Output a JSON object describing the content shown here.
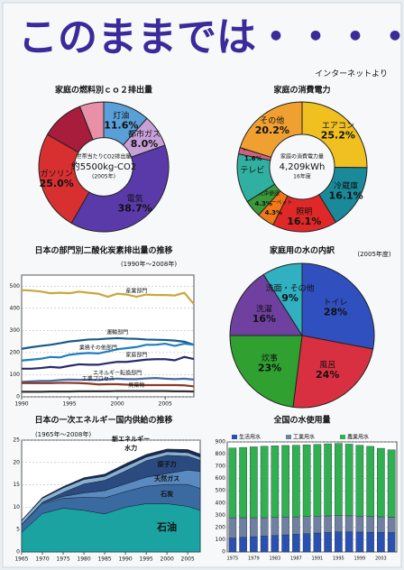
{
  "header": {
    "title": "このままでは・・・・・",
    "source": "インターネットより"
  },
  "chart_data": [
    {
      "type": "donut",
      "title": "家庭の燃料別ｃｏ２排出量",
      "center_labels": [
        "世帯当たりCO2排出量",
        "約5500kg-CO2",
        "(2005年)"
      ],
      "categories": [
        "灯油",
        "都市ガス",
        "電気",
        "ガソリン",
        null,
        null
      ],
      "values": [
        11.6,
        8.0,
        38.7,
        25.0,
        10.7,
        6.0
      ],
      "value_labels": [
        "11.6%",
        "8.0%",
        "38.7%",
        "25.0%",
        null,
        null
      ],
      "colors": [
        "#5aa0d8",
        "#c8a0d8",
        "#5a3aa8",
        "#d83030",
        "#a81c3c",
        "#e890a8"
      ]
    },
    {
      "type": "donut",
      "title": "家庭の消費電力",
      "center_labels": [
        "家庭の消費電力量",
        "4,209kWh",
        "16年度"
      ],
      "categories": [
        "エアコン",
        "冷蔵庫",
        "照明",
        "電気カーペット",
        "温水洗浄便座",
        "テレビ",
        "食器洗い",
        "その他"
      ],
      "values": [
        25.2,
        16.1,
        16.1,
        4.3,
        4.3,
        12.2,
        1.6,
        20.2
      ],
      "value_labels": [
        "25.2%",
        "16.1%",
        "16.1%",
        "4.3%",
        "4.3%",
        null,
        "1.6%",
        "20.2%"
      ],
      "colors": [
        "#f0c020",
        "#1a8a9a",
        "#e02828",
        "#f07818",
        "#3a9a3a",
        "#30b0a0",
        "#d06080",
        "#f0a030"
      ]
    },
    {
      "type": "line",
      "title": "日本の部門別二酸化炭素排出量の推移",
      "subtitle": "(1990年〜2008年)",
      "x": [
        1990,
        1991,
        1992,
        1993,
        1994,
        1995,
        1996,
        1997,
        1998,
        1999,
        2000,
        2001,
        2002,
        2003,
        2004,
        2005,
        2006,
        2007,
        2008
      ],
      "xlim": [
        1990,
        2008
      ],
      "xticks": [
        1990,
        1995,
        2000,
        2005
      ],
      "ylim": [
        0,
        550
      ],
      "yticks": [
        0,
        100,
        200,
        300,
        400,
        500
      ],
      "series": [
        {
          "name": "産業部門",
          "color": "#c8a83c",
          "values": [
            482,
            480,
            476,
            468,
            470,
            468,
            475,
            470,
            466,
            452,
            466,
            462,
            452,
            462,
            460,
            460,
            458,
            470,
            419
          ]
        },
        {
          "name": "運輸部門",
          "color": "#1a5a8a",
          "values": [
            217,
            224,
            230,
            235,
            242,
            250,
            254,
            259,
            260,
            263,
            265,
            263,
            262,
            259,
            258,
            257,
            254,
            249,
            235
          ]
        },
        {
          "name": "業務その他部門",
          "color": "#1e7fbf",
          "values": [
            164,
            168,
            172,
            180,
            178,
            190,
            195,
            198,
            196,
            205,
            215,
            220,
            225,
            235,
            235,
            240,
            230,
            240,
            235
          ]
        },
        {
          "name": "家庭部門",
          "color": "#2a2a6a",
          "values": [
            127,
            127,
            130,
            135,
            132,
            140,
            147,
            145,
            145,
            152,
            158,
            158,
            163,
            168,
            170,
            170,
            165,
            180,
            171
          ]
        },
        {
          "name": "エネルギー転換部門",
          "color": "#4a6aa0",
          "values": [
            68,
            70,
            72,
            72,
            76,
            78,
            77,
            78,
            76,
            80,
            82,
            80,
            80,
            83,
            85,
            82,
            80,
            82,
            78
          ]
        },
        {
          "name": "工業プロセス",
          "color": "#8a3a2a",
          "values": [
            62,
            62,
            62,
            62,
            63,
            63,
            62,
            60,
            56,
            57,
            57,
            55,
            53,
            53,
            53,
            53,
            53,
            52,
            47
          ]
        },
        {
          "name": "廃棄物",
          "color": "#303030",
          "values": [
            23,
            23,
            23,
            24,
            24,
            24,
            25,
            25,
            25,
            25,
            26,
            26,
            26,
            26,
            26,
            26,
            25,
            25,
            24
          ]
        }
      ]
    },
    {
      "type": "pie",
      "title": "家庭用の水の内訳",
      "subtitle": "(2005年度)",
      "categories": [
        "トイレ",
        "風呂",
        "炊事",
        "洗濯",
        "洗面・その他"
      ],
      "values": [
        28,
        24,
        23,
        16,
        9
      ],
      "value_labels": [
        "28%",
        "24%",
        "23%",
        "16%",
        "9%"
      ],
      "colors": [
        "#3050c0",
        "#d83040",
        "#30a030",
        "#7040a0",
        "#30b0c0"
      ]
    },
    {
      "type": "area",
      "title": "日本の一次エネルギー国内供給の推移",
      "subtitle": "(1965年〜2008年)",
      "x": [
        1965,
        1970,
        1975,
        1980,
        1985,
        1990,
        1995,
        2000,
        2005,
        2008
      ],
      "xlim": [
        1965,
        2008
      ],
      "xticks": [
        1965,
        1970,
        1975,
        1980,
        1985,
        1990,
        1995,
        2000,
        2005
      ],
      "ylim": [
        0,
        25
      ],
      "yticks": [
        0,
        5,
        10,
        15,
        20,
        25
      ],
      "series": [
        {
          "name": "石油",
          "color": "#1aa3a0",
          "values": [
            4.4,
            8.6,
            9.8,
            9.3,
            8.5,
            10.0,
            10.8,
            10.8,
            10.2,
            9.3
          ]
        },
        {
          "name": "石炭",
          "color": "#3a6aa0",
          "values": [
            1.7,
            2.2,
            2.2,
            2.9,
            3.6,
            3.5,
            3.9,
            4.3,
            4.9,
            4.9
          ]
        },
        {
          "name": "天然ガス",
          "color": "#5a8ac0",
          "values": [
            0.1,
            0.2,
            0.4,
            1.0,
            1.6,
            1.7,
            2.0,
            2.4,
            3.2,
            3.8
          ]
        },
        {
          "name": "原子力",
          "color": "#2a4a80",
          "values": [
            0,
            0.1,
            0.9,
            2.0,
            2.3,
            2.9,
            3.7,
            4.1,
            3.1,
            2.5
          ]
        },
        {
          "name": "水力",
          "color": "#8ab0d0",
          "values": [
            0.8,
            0.9,
            1.0,
            1.0,
            0.9,
            1.0,
            0.8,
            0.8,
            0.8,
            0.7
          ]
        },
        {
          "name": "新エネルギー",
          "color": "#1a2a50",
          "values": [
            0.1,
            0.2,
            0.3,
            0.4,
            0.5,
            0.6,
            0.6,
            0.6,
            0.7,
            0.7
          ]
        }
      ]
    },
    {
      "type": "stackedbar",
      "title": "全国の水使用量",
      "categories": [
        "1975",
        null,
        "1979",
        null,
        "1983",
        null,
        "1987",
        null,
        "1991",
        null,
        "1995",
        null,
        "1999",
        null,
        "2003",
        null
      ],
      "ylim": [
        0,
        900
      ],
      "yticks": [
        0,
        100,
        200,
        300,
        400,
        500,
        600,
        700,
        800,
        900
      ],
      "series": [
        {
          "name": "生活用水",
          "color": "#2a50b0",
          "values": [
            114,
            120,
            125,
            130,
            135,
            140,
            145,
            150,
            155,
            160,
            164,
            164,
            163,
            161,
            160,
            159
          ]
        },
        {
          "name": "工業用水",
          "color": "#7080a0",
          "values": [
            166,
            160,
            155,
            150,
            148,
            145,
            142,
            140,
            138,
            135,
            134,
            132,
            130,
            128,
            128,
            125
          ]
        },
        {
          "name": "農業用水",
          "color": "#30b050",
          "values": [
            570,
            575,
            580,
            585,
            585,
            586,
            586,
            586,
            587,
            590,
            590,
            586,
            580,
            575,
            560,
            552
          ]
        }
      ]
    }
  ]
}
